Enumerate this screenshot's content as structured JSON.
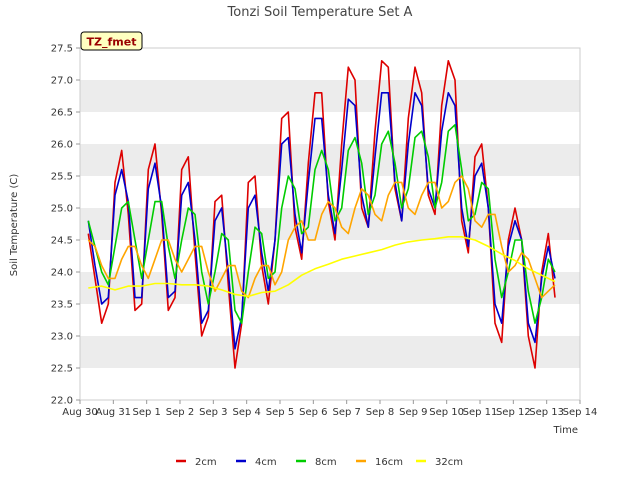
{
  "chart_data": {
    "type": "line",
    "title": "Tonzi Soil Temperature Set A",
    "badge": "TZ_fmet",
    "xlabel": "Time",
    "ylabel": "Soil Temperature (C)",
    "x_unit": "days since Aug 30",
    "xlim": [
      0,
      15
    ],
    "ylim": [
      22.0,
      27.5
    ],
    "y_ticks": [
      22.0,
      22.5,
      23.0,
      23.5,
      24.0,
      24.5,
      25.0,
      25.5,
      26.0,
      26.5,
      27.0,
      27.5
    ],
    "x_ticks": [
      {
        "value": 0,
        "label": "Aug 30"
      },
      {
        "value": 1,
        "label": "Aug 31"
      },
      {
        "value": 2,
        "label": "Sep 1"
      },
      {
        "value": 3,
        "label": "Sep 2"
      },
      {
        "value": 4,
        "label": "Sep 3"
      },
      {
        "value": 5,
        "label": "Sep 4"
      },
      {
        "value": 6,
        "label": "Sep 5"
      },
      {
        "value": 7,
        "label": "Sep 6"
      },
      {
        "value": 8,
        "label": "Sep 7"
      },
      {
        "value": 9,
        "label": "Sep 8"
      },
      {
        "value": 10,
        "label": "Sep 9"
      },
      {
        "value": 11,
        "label": "Sep 10"
      },
      {
        "value": 12,
        "label": "Sep 11"
      },
      {
        "value": 13,
        "label": "Sep 12"
      },
      {
        "value": 14,
        "label": "Sep 13"
      },
      {
        "value": 15,
        "label": "Sep 14"
      }
    ],
    "grid": "horizontal alternating bands",
    "legend_position": "bottom-center",
    "series": [
      {
        "name": "2cm",
        "color": "#dd0000",
        "x": [
          0.25,
          0.45,
          0.65,
          0.85,
          1.05,
          1.25,
          1.45,
          1.65,
          1.85,
          2.05,
          2.25,
          2.45,
          2.65,
          2.85,
          3.05,
          3.25,
          3.45,
          3.65,
          3.85,
          4.05,
          4.25,
          4.45,
          4.65,
          4.85,
          5.05,
          5.25,
          5.45,
          5.65,
          5.85,
          6.05,
          6.25,
          6.45,
          6.65,
          6.85,
          7.05,
          7.25,
          7.45,
          7.65,
          7.85,
          8.05,
          8.25,
          8.45,
          8.65,
          8.85,
          9.05,
          9.25,
          9.45,
          9.65,
          9.85,
          10.05,
          10.25,
          10.45,
          10.65,
          10.85,
          11.05,
          11.25,
          11.45,
          11.65,
          11.85,
          12.05,
          12.25,
          12.45,
          12.65,
          12.85,
          13.05,
          13.25,
          13.45,
          13.65,
          13.85,
          14.05,
          14.25
        ],
        "y": [
          24.6,
          23.9,
          23.2,
          23.5,
          25.4,
          25.9,
          24.9,
          23.4,
          23.5,
          25.6,
          26.0,
          24.9,
          23.4,
          23.6,
          25.6,
          25.8,
          24.3,
          23.0,
          23.3,
          25.1,
          25.2,
          23.8,
          22.5,
          23.2,
          25.4,
          25.5,
          24.1,
          23.5,
          24.5,
          26.4,
          26.5,
          24.7,
          24.2,
          25.7,
          26.8,
          26.8,
          25.1,
          24.5,
          26.0,
          27.2,
          27.0,
          25.0,
          24.7,
          26.2,
          27.3,
          27.2,
          25.3,
          24.8,
          26.4,
          27.2,
          26.8,
          25.2,
          24.9,
          26.6,
          27.3,
          27.0,
          24.8,
          24.3,
          25.8,
          26.0,
          25.0,
          23.2,
          22.9,
          24.5,
          25.0,
          24.5,
          23.0,
          22.5,
          24.0,
          24.6,
          23.6
        ]
      },
      {
        "name": "4cm",
        "color": "#0000cc",
        "x": [
          0.25,
          0.45,
          0.65,
          0.85,
          1.05,
          1.25,
          1.45,
          1.65,
          1.85,
          2.05,
          2.25,
          2.45,
          2.65,
          2.85,
          3.05,
          3.25,
          3.45,
          3.65,
          3.85,
          4.05,
          4.25,
          4.45,
          4.65,
          4.85,
          5.05,
          5.25,
          5.45,
          5.65,
          5.85,
          6.05,
          6.25,
          6.45,
          6.65,
          6.85,
          7.05,
          7.25,
          7.45,
          7.65,
          7.85,
          8.05,
          8.25,
          8.45,
          8.65,
          8.85,
          9.05,
          9.25,
          9.45,
          9.65,
          9.85,
          10.05,
          10.25,
          10.45,
          10.65,
          10.85,
          11.05,
          11.25,
          11.45,
          11.65,
          11.85,
          12.05,
          12.25,
          12.45,
          12.65,
          12.85,
          13.05,
          13.25,
          13.45,
          13.65,
          13.85,
          14.05,
          14.25
        ],
        "y": [
          24.8,
          24.1,
          23.5,
          23.6,
          25.2,
          25.6,
          25.1,
          23.6,
          23.6,
          25.3,
          25.7,
          25.0,
          23.6,
          23.7,
          25.2,
          25.4,
          24.5,
          23.2,
          23.4,
          24.8,
          25.0,
          24.0,
          22.8,
          23.3,
          25.0,
          25.2,
          24.3,
          23.7,
          24.5,
          26.0,
          26.1,
          24.9,
          24.3,
          25.4,
          26.4,
          26.4,
          25.2,
          24.6,
          25.6,
          26.7,
          26.6,
          25.2,
          24.7,
          25.8,
          26.8,
          26.8,
          25.4,
          24.8,
          26.0,
          26.8,
          26.6,
          25.3,
          25.0,
          26.2,
          26.8,
          26.6,
          25.0,
          24.4,
          25.5,
          25.7,
          25.0,
          23.5,
          23.2,
          24.4,
          24.8,
          24.5,
          23.2,
          22.9,
          23.9,
          24.4,
          23.9
        ]
      },
      {
        "name": "8cm",
        "color": "#00cc00",
        "x": [
          0.25,
          0.45,
          0.65,
          0.85,
          1.05,
          1.25,
          1.45,
          1.65,
          1.85,
          2.05,
          2.25,
          2.45,
          2.65,
          2.85,
          3.05,
          3.25,
          3.45,
          3.65,
          3.85,
          4.05,
          4.25,
          4.45,
          4.65,
          4.85,
          5.05,
          5.25,
          5.45,
          5.65,
          5.85,
          6.05,
          6.25,
          6.45,
          6.65,
          6.85,
          7.05,
          7.25,
          7.45,
          7.65,
          7.85,
          8.05,
          8.25,
          8.45,
          8.65,
          8.85,
          9.05,
          9.25,
          9.45,
          9.65,
          9.85,
          10.05,
          10.25,
          10.45,
          10.65,
          10.85,
          11.05,
          11.25,
          11.45,
          11.65,
          11.85,
          12.05,
          12.25,
          12.45,
          12.65,
          12.85,
          13.05,
          13.25,
          13.45,
          13.65,
          13.85,
          14.05,
          14.25
        ],
        "y": [
          24.8,
          24.4,
          24.0,
          23.8,
          24.4,
          25.0,
          25.1,
          24.5,
          23.9,
          24.5,
          25.1,
          25.1,
          24.4,
          23.9,
          24.5,
          25.0,
          24.9,
          24.0,
          23.5,
          24.0,
          24.6,
          24.5,
          23.4,
          23.2,
          24.0,
          24.7,
          24.6,
          23.9,
          24.0,
          25.0,
          25.5,
          25.3,
          24.6,
          24.7,
          25.6,
          25.9,
          25.6,
          24.8,
          25.0,
          25.9,
          26.1,
          25.7,
          24.9,
          25.2,
          26.0,
          26.2,
          25.7,
          25.0,
          25.3,
          26.1,
          26.2,
          25.8,
          25.0,
          25.4,
          26.2,
          26.3,
          25.6,
          24.8,
          24.9,
          25.4,
          25.3,
          24.2,
          23.6,
          24.0,
          24.5,
          24.5,
          23.7,
          23.2,
          23.6,
          24.2,
          24.0
        ]
      },
      {
        "name": "16cm",
        "color": "#ffa500",
        "x": [
          0.25,
          0.45,
          0.65,
          0.85,
          1.05,
          1.25,
          1.45,
          1.65,
          1.85,
          2.05,
          2.25,
          2.45,
          2.65,
          2.85,
          3.05,
          3.25,
          3.45,
          3.65,
          3.85,
          4.05,
          4.25,
          4.45,
          4.65,
          4.85,
          5.05,
          5.25,
          5.45,
          5.65,
          5.85,
          6.05,
          6.25,
          6.45,
          6.65,
          6.85,
          7.05,
          7.25,
          7.45,
          7.65,
          7.85,
          8.05,
          8.25,
          8.45,
          8.65,
          8.85,
          9.05,
          9.25,
          9.45,
          9.65,
          9.85,
          10.05,
          10.25,
          10.45,
          10.65,
          10.85,
          11.05,
          11.25,
          11.45,
          11.65,
          11.85,
          12.05,
          12.25,
          12.45,
          12.65,
          12.85,
          13.05,
          13.25,
          13.45,
          13.65,
          13.85,
          14.05,
          14.25
        ],
        "y": [
          24.5,
          24.4,
          24.1,
          23.9,
          23.9,
          24.2,
          24.4,
          24.4,
          24.1,
          23.9,
          24.2,
          24.5,
          24.5,
          24.2,
          24.0,
          24.2,
          24.4,
          24.4,
          24.0,
          23.7,
          23.9,
          24.1,
          24.1,
          23.7,
          23.6,
          23.9,
          24.1,
          24.1,
          23.8,
          24.0,
          24.5,
          24.7,
          24.8,
          24.5,
          24.5,
          24.9,
          25.1,
          25.0,
          24.7,
          24.6,
          25.0,
          25.3,
          25.2,
          24.9,
          24.8,
          25.2,
          25.4,
          25.4,
          25.0,
          24.9,
          25.2,
          25.4,
          25.4,
          25.0,
          25.1,
          25.4,
          25.5,
          25.3,
          24.8,
          24.7,
          24.9,
          24.9,
          24.4,
          24.0,
          24.1,
          24.3,
          24.2,
          23.9,
          23.6,
          23.7,
          23.8
        ]
      },
      {
        "name": "32cm",
        "color": "#ffff00",
        "x": [
          0.25,
          0.65,
          1.05,
          1.45,
          1.85,
          2.25,
          2.65,
          3.05,
          3.45,
          3.85,
          4.25,
          4.65,
          5.05,
          5.45,
          5.85,
          6.25,
          6.65,
          7.05,
          7.45,
          7.85,
          8.25,
          8.65,
          9.05,
          9.45,
          9.85,
          10.25,
          10.65,
          11.05,
          11.45,
          11.85,
          12.25,
          12.65,
          13.05,
          13.45,
          13.85,
          14.25
        ],
        "y": [
          23.75,
          23.78,
          23.72,
          23.78,
          23.78,
          23.82,
          23.82,
          23.8,
          23.8,
          23.78,
          23.72,
          23.65,
          23.62,
          23.68,
          23.7,
          23.8,
          23.95,
          24.05,
          24.12,
          24.2,
          24.25,
          24.3,
          24.35,
          24.42,
          24.47,
          24.5,
          24.52,
          24.55,
          24.55,
          24.5,
          24.4,
          24.28,
          24.18,
          24.05,
          23.95,
          23.85
        ]
      }
    ]
  }
}
